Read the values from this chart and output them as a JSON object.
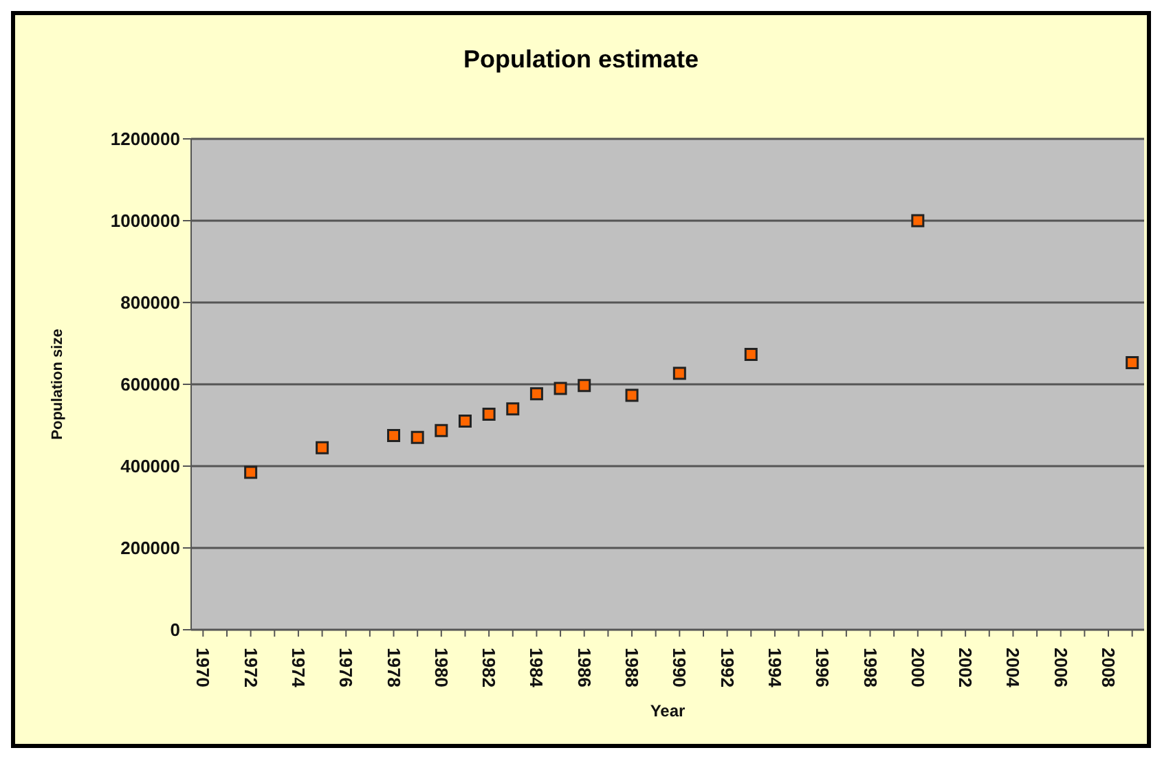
{
  "chart_data": {
    "type": "scatter",
    "title": "Population estimate",
    "xlabel": "Year",
    "ylabel": "Population size",
    "x": [
      1972,
      1975,
      1978,
      1979,
      1980,
      1981,
      1982,
      1983,
      1984,
      1985,
      1986,
      1988,
      1990,
      1993,
      2000,
      2009
    ],
    "series": [
      {
        "color": "#ff6600",
        "values": [
          385000,
          445000,
          475000,
          470000,
          487000,
          510000,
          527000,
          540000,
          577000,
          590000,
          597000,
          573000,
          627000,
          673000,
          1000000,
          653000
        ]
      }
    ],
    "xlim": [
      1969.5,
      2009.5
    ],
    "xticks": [
      1970,
      {
        "value": 1971,
        "label": null
      },
      1972,
      {
        "value": 1973,
        "label": null
      },
      1974,
      {
        "value": 1975,
        "label": null
      },
      1976,
      {
        "value": 1977,
        "label": null
      },
      1978,
      {
        "value": 1979,
        "label": null
      },
      1980,
      {
        "value": 1981,
        "label": null
      },
      1982,
      {
        "value": 1983,
        "label": null
      },
      1984,
      {
        "value": 1985,
        "label": null
      },
      1986,
      {
        "value": 1987,
        "label": null
      },
      1988,
      {
        "value": 1989,
        "label": null
      },
      1990,
      {
        "value": 1991,
        "label": null
      },
      1992,
      {
        "value": 1993,
        "label": null
      },
      1994,
      {
        "value": 1995,
        "label": null
      },
      1996,
      {
        "value": 1997,
        "label": null
      },
      1998,
      {
        "value": 1999,
        "label": null
      },
      2000,
      {
        "value": 2001,
        "label": null
      },
      2002,
      {
        "value": 2003,
        "label": null
      },
      2004,
      {
        "value": 2005,
        "label": null
      },
      2006,
      {
        "value": 2007,
        "label": null
      },
      2008,
      {
        "value": 2009,
        "label": null
      }
    ],
    "ylim": [
      0,
      1200000
    ],
    "yticks": [
      0,
      200000,
      400000,
      600000,
      800000,
      1000000,
      1200000
    ],
    "grid": "y",
    "legend": false,
    "marker": "square"
  }
}
